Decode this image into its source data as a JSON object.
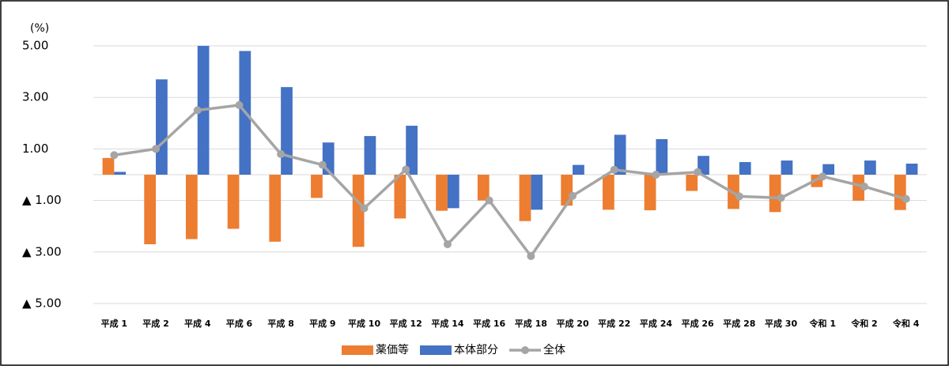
{
  "chart_data": {
    "type": "bar_line",
    "y_unit": "(%)",
    "categories": [
      "平成 1",
      "平成 2",
      "平成 4",
      "平成 6",
      "平成 8",
      "平成 9",
      "平成 10",
      "平成 12",
      "平成 14",
      "平成 16",
      "平成 18",
      "平成 20",
      "平成 22",
      "平成 24",
      "平成 26",
      "平成 28",
      "平成 30",
      "令和 1",
      "令和 2",
      "令和 4"
    ],
    "series": [
      {
        "name": "薬価等",
        "color": "#ed7d31",
        "type": "bar",
        "values": [
          0.65,
          -2.7,
          -2.5,
          -2.1,
          -2.6,
          -0.9,
          -2.8,
          -1.7,
          -1.4,
          -1.0,
          -1.8,
          -1.2,
          -1.36,
          -1.38,
          -0.63,
          -1.33,
          -1.45,
          -0.48,
          -1.01,
          -1.37
        ]
      },
      {
        "name": "本体部分",
        "color": "#4472c4",
        "type": "bar",
        "values": [
          0.11,
          3.7,
          5.0,
          4.8,
          3.4,
          1.25,
          1.5,
          1.9,
          -1.3,
          0,
          -1.36,
          0.38,
          1.55,
          1.38,
          0.73,
          0.49,
          0.55,
          0.41,
          0.55,
          0.43
        ]
      },
      {
        "name": "全体",
        "color": "#a5a5a5",
        "type": "line",
        "values": [
          0.76,
          1.0,
          2.5,
          2.7,
          0.8,
          0.38,
          -1.3,
          0.2,
          -2.7,
          -1.0,
          -3.16,
          -0.82,
          0.19,
          0.0,
          0.1,
          -0.84,
          -0.9,
          -0.07,
          -0.46,
          -0.94
        ]
      }
    ],
    "ylim": [
      -5,
      5
    ],
    "yticks": [
      {
        "value": -5,
        "label": "▲ 5.00"
      },
      {
        "value": -3,
        "label": "▲ 3.00"
      },
      {
        "value": -1,
        "label": "▲ 1.00"
      },
      {
        "value": 1,
        "label": "1.00"
      },
      {
        "value": 3,
        "label": "3.00"
      },
      {
        "value": 5,
        "label": "5.00"
      }
    ],
    "grid": true,
    "legend": "bottom"
  }
}
